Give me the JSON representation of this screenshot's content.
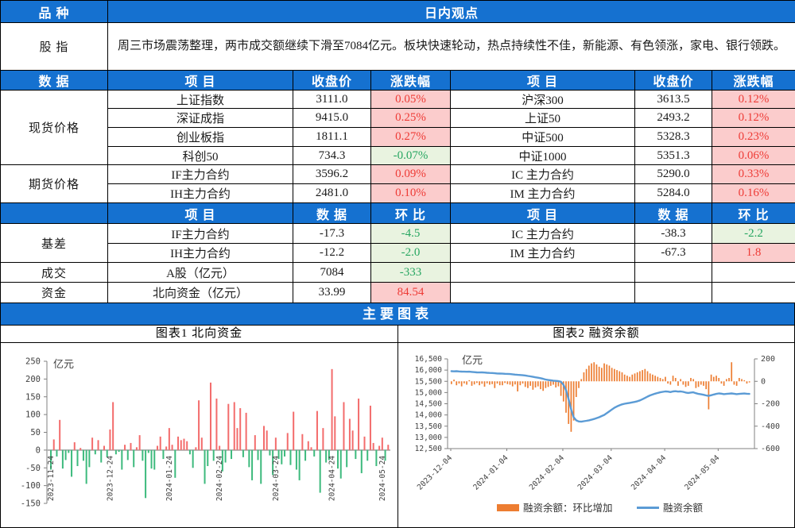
{
  "colors": {
    "header_blue": "#1571D0",
    "rise_bg": "#FBCCCC",
    "rise_text": "#EE3B36",
    "fall_bg": "#E9F3E0",
    "fall_text": "#27A661",
    "bar_up_red": "#F36C6C",
    "bar_down_green": "#3DBA7D",
    "orange": "#ED7D31",
    "line_blue": "#5B9BD5"
  },
  "table": {
    "variety_header": "品 种",
    "daily_view_title": "日内观点",
    "equity_label": "股 指",
    "comment": "周三市场震荡整理，两市成交额继续下滑至7084亿元。板块快速轮动，热点持续性不佳，新能源、有色领涨，家电、银行领跌。",
    "header1": [
      "数 据",
      "项 目",
      "收盘价",
      "涨跌幅",
      "项 目",
      "收盘价",
      "涨跌幅"
    ],
    "header2": [
      "",
      "项 目",
      "数 据",
      "环 比",
      "项 目",
      "数 据",
      "环 比"
    ],
    "spot": {
      "label": "现货价格",
      "rows": [
        {
          "left": {
            "name": "上证指数",
            "close": "3111.0",
            "chg": "0.05%",
            "dir": "up"
          },
          "right": {
            "name": "沪深300",
            "close": "3613.5",
            "chg": "0.12%",
            "dir": "up"
          }
        },
        {
          "left": {
            "name": "深证成指",
            "close": "9415.0",
            "chg": "0.25%",
            "dir": "up"
          },
          "right": {
            "name": "上证50",
            "close": "2493.2",
            "chg": "0.12%",
            "dir": "up"
          }
        },
        {
          "left": {
            "name": "创业板指",
            "close": "1811.1",
            "chg": "0.27%",
            "dir": "up"
          },
          "right": {
            "name": "中证500",
            "close": "5328.3",
            "chg": "0.23%",
            "dir": "up"
          }
        },
        {
          "left": {
            "name": "科创50",
            "close": "734.3",
            "chg": "-0.07%",
            "dir": "down"
          },
          "right": {
            "name": "中证1000",
            "close": "5351.3",
            "chg": "0.06%",
            "dir": "up"
          }
        }
      ]
    },
    "futures": {
      "label": "期货价格",
      "rows": [
        {
          "left": {
            "name": "IF主力合约",
            "close": "3596.2",
            "chg": "0.09%",
            "dir": "up"
          },
          "right": {
            "name": "IC 主力合约",
            "close": "5290.0",
            "chg": "0.33%",
            "dir": "up"
          }
        },
        {
          "left": {
            "name": "IH主力合约",
            "close": "2481.0",
            "chg": "0.10%",
            "dir": "up"
          },
          "right": {
            "name": "IM 主力合约",
            "close": "5284.0",
            "chg": "0.16%",
            "dir": "up"
          }
        }
      ]
    },
    "basis": {
      "label": "基差",
      "rows": [
        {
          "left": {
            "name": "IF主力合约",
            "value": "-17.3",
            "chg": "-4.5",
            "dir": "down"
          },
          "right": {
            "name": "IC 主力合约",
            "value": "-38.3",
            "chg": "-2.2",
            "dir": "down"
          }
        },
        {
          "left": {
            "name": "IH主力合约",
            "value": "-12.2",
            "chg": "-2.0",
            "dir": "down"
          },
          "right": {
            "name": "IM 主力合约",
            "value": "-67.3",
            "chg": "1.8",
            "dir": "up"
          }
        }
      ]
    },
    "turnover": {
      "label": "成交",
      "name": "A股（亿元）",
      "value": "7084",
      "chg": "-333",
      "dir": "down"
    },
    "flows": {
      "label": "资金",
      "name": "北向资金（亿元）",
      "value": "33.99",
      "chg": "84.54",
      "dir": "up"
    },
    "charts_banner": "主要图表"
  },
  "chart_data": [
    {
      "type": "bar",
      "title": "图表1 北向资金",
      "ylabel": "亿元",
      "ylim": [
        -150,
        250
      ],
      "ytick_step": 50,
      "grid": false,
      "up_color": "#F36C6C",
      "down_color": "#3DBA7D",
      "x_ticks": [
        {
          "index": 0,
          "label": "2023-11-24"
        },
        {
          "index": 20,
          "label": "2023-12-24"
        },
        {
          "index": 40,
          "label": "2024-01-24"
        },
        {
          "index": 57,
          "label": "2024-02-24"
        },
        {
          "index": 76,
          "label": "2024-03-24"
        },
        {
          "index": 95,
          "label": "2024-04-24"
        },
        {
          "index": 112,
          "label": "2024-05-24"
        }
      ],
      "values": [
        -55,
        30,
        -18,
        85,
        -52,
        -28,
        -8,
        -75,
        22,
        -45,
        6,
        -30,
        -95,
        -48,
        35,
        -12,
        28,
        -35,
        12,
        -20,
        58,
        135,
        -12,
        -5,
        -55,
        15,
        -28,
        20,
        -48,
        8,
        42,
        -30,
        -135,
        -8,
        -52,
        -55,
        12,
        38,
        -25,
        10,
        62,
        15,
        -78,
        38,
        28,
        32,
        25,
        -12,
        -50,
        8,
        140,
        35,
        -95,
        -45,
        190,
        -30,
        145,
        12,
        -60,
        -35,
        130,
        -25,
        135,
        62,
        118,
        -20,
        105,
        -48,
        -85,
        42,
        -28,
        -95,
        68,
        55,
        -15,
        -70,
        35,
        -25,
        -40,
        -18,
        48,
        -42,
        108,
        -55,
        -85,
        45,
        -30,
        25,
        8,
        -18,
        110,
        -120,
        62,
        -35,
        -28,
        228,
        95,
        -52,
        -80,
        135,
        -48,
        88,
        55,
        -25,
        145,
        -65,
        38,
        -30,
        125,
        20,
        -45,
        12,
        35,
        -30,
        15
      ]
    },
    {
      "type": "bar+line",
      "title": "图表2 融资余额",
      "ylabel": "亿元",
      "left_ylim": [
        12500,
        16500
      ],
      "left_ytick_step": 500,
      "right_ylim": [
        -600,
        200
      ],
      "right_ytick_step": 200,
      "grid": false,
      "legend_position": "bottom",
      "legend": [
        {
          "label": "融资余额：环比增加",
          "color": "#ED7D31",
          "marker": "bar"
        },
        {
          "label": "融资余额",
          "color": "#5B9BD5",
          "marker": "line"
        }
      ],
      "x_ticks": [
        {
          "index": 0,
          "label": "2023-12-04"
        },
        {
          "index": 22,
          "label": "2024-01-04"
        },
        {
          "index": 44,
          "label": "2024-02-04"
        },
        {
          "index": 63,
          "label": "2024-03-04"
        },
        {
          "index": 84,
          "label": "2024-04-04"
        },
        {
          "index": 105,
          "label": "2024-05-04"
        }
      ],
      "bars": [
        -25,
        15,
        -35,
        -20,
        -45,
        -18,
        -30,
        10,
        -40,
        -28,
        -15,
        -35,
        -22,
        -48,
        -18,
        -30,
        -25,
        -60,
        -20,
        -35,
        -35,
        -15,
        -25,
        -30,
        -45,
        -28,
        -90,
        -35,
        -20,
        -50,
        -60,
        -40,
        -75,
        -55,
        -45,
        -70,
        -85,
        -60,
        -50,
        -40,
        -30,
        -55,
        -45,
        -130,
        -180,
        -280,
        -380,
        -450,
        -350,
        -140,
        -60,
        20,
        80,
        110,
        140,
        160,
        170,
        150,
        130,
        120,
        160,
        150,
        140,
        120,
        110,
        100,
        90,
        80,
        60,
        50,
        40,
        60,
        70,
        80,
        90,
        100,
        110,
        90,
        70,
        60,
        50,
        40,
        30,
        20,
        40,
        -20,
        -30,
        50,
        30,
        -40,
        20,
        -30,
        -50,
        -40,
        30,
        20,
        -60,
        -50,
        -30,
        -40,
        -70,
        -250,
        60,
        40,
        50,
        30,
        -20,
        -40,
        20,
        30,
        170,
        -30,
        -40,
        30,
        20,
        10,
        -20,
        -10
      ],
      "line": [
        15950,
        15945,
        15952,
        15940,
        15935,
        15930,
        15925,
        15930,
        15920,
        15910,
        15900,
        15895,
        15900,
        15890,
        15880,
        15875,
        15870,
        15860,
        15850,
        15845,
        15840,
        15835,
        15830,
        15825,
        15815,
        15800,
        15790,
        15780,
        15770,
        15760,
        15740,
        15720,
        15700,
        15680,
        15660,
        15640,
        15610,
        15580,
        15560,
        15545,
        15530,
        15520,
        15510,
        15480,
        15350,
        15100,
        14700,
        14250,
        13900,
        13760,
        13710,
        13700,
        13720,
        13740,
        13760,
        13790,
        13820,
        13860,
        13900,
        13950,
        14000,
        14080,
        14160,
        14240,
        14320,
        14380,
        14430,
        14470,
        14500,
        14520,
        14540,
        14560,
        14580,
        14610,
        14650,
        14700,
        14760,
        14820,
        14870,
        14910,
        14950,
        14980,
        15010,
        15030,
        15050,
        15040,
        15020,
        15050,
        15060,
        15040,
        15050,
        15030,
        15000,
        14980,
        15000,
        15010,
        14970,
        14940,
        14920,
        14900,
        14870,
        14850,
        14880,
        14910,
        14940,
        14960,
        14950,
        14930,
        14940,
        14950,
        14960,
        14945,
        14930,
        14940,
        14950,
        14955,
        14945,
        14940
      ]
    }
  ]
}
